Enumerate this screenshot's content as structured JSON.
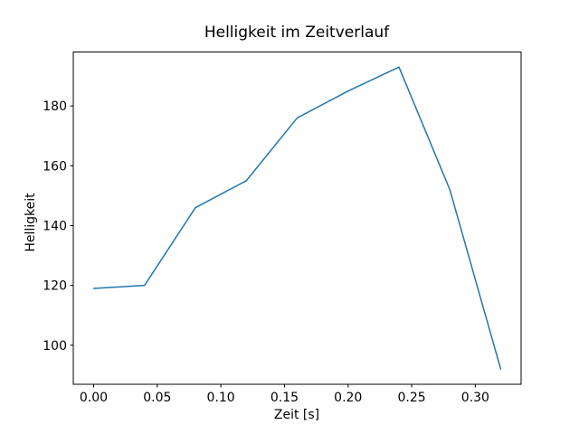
{
  "figure": {
    "background": "#ffffff",
    "spine_color": "#000000",
    "text_color": "#000000"
  },
  "chart_data": {
    "type": "line",
    "title": "Helligkeit im Zeitverlauf",
    "xlabel": "Zeit [s]",
    "ylabel": "Helligkeit",
    "x": [
      0.0,
      0.04,
      0.08,
      0.12,
      0.16,
      0.2,
      0.24,
      0.28,
      0.32
    ],
    "y": [
      119,
      120,
      146,
      155,
      176,
      185,
      193,
      152,
      92
    ],
    "line_color": "#1f77b4",
    "line_width": 1.5,
    "x_ticks": {
      "values": [
        0.0,
        0.05,
        0.1,
        0.15,
        0.2,
        0.25,
        0.3
      ],
      "labels": [
        "0.00",
        "0.05",
        "0.10",
        "0.15",
        "0.20",
        "0.25",
        "0.30"
      ]
    },
    "y_ticks": {
      "values": [
        100,
        120,
        140,
        160,
        180
      ],
      "labels": [
        "100",
        "120",
        "140",
        "160",
        "180"
      ]
    },
    "xlim": [
      -0.016,
      0.336
    ],
    "ylim": [
      86.95,
      198.05
    ],
    "grid": false,
    "legend": false,
    "markers": false
  }
}
